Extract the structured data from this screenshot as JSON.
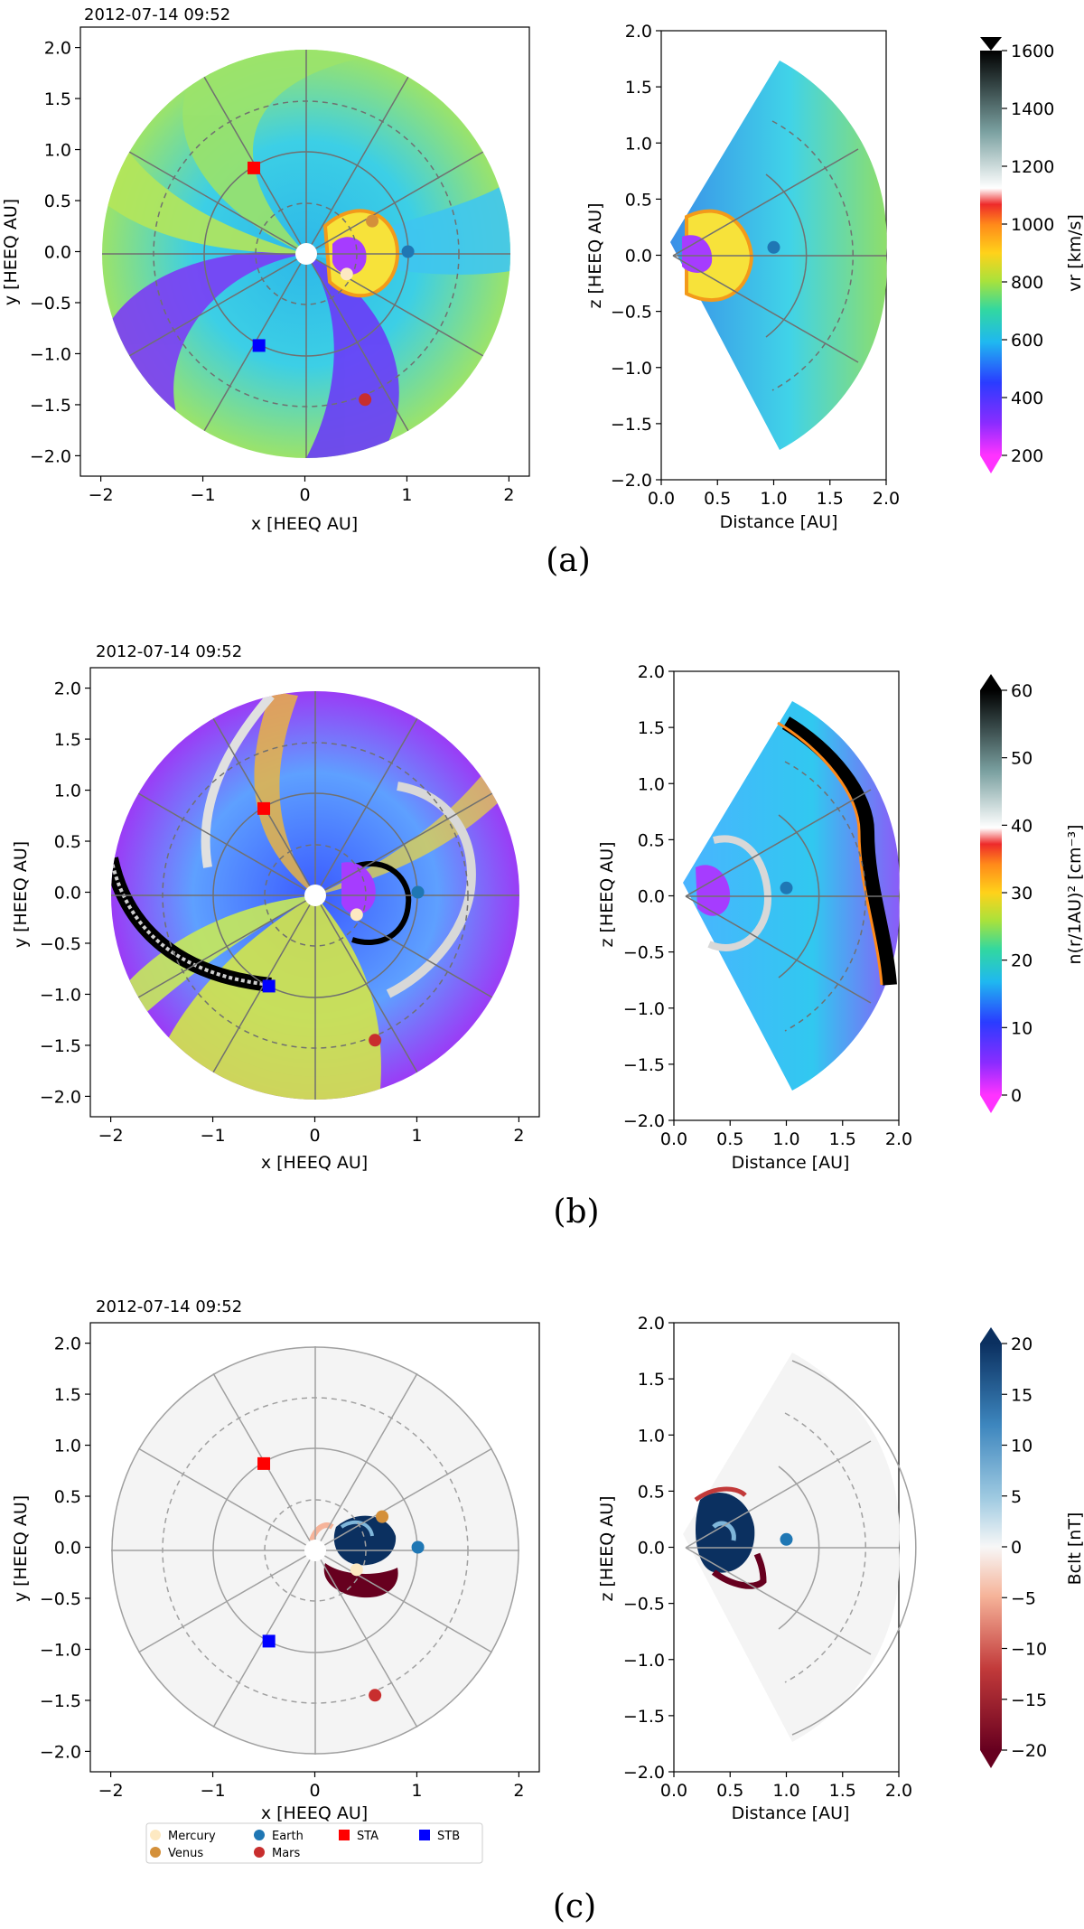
{
  "common": {
    "date": "2012-07-14 09:52",
    "x_label": "x [HEEQ AU]",
    "y_label": "y [HEEQ AU]",
    "z_label": "z [HEEQ AU]",
    "dist_label": "Distance [AU]",
    "xy_xticks": [
      -2,
      -1,
      0,
      1,
      2
    ],
    "xy_yticks": [
      2.0,
      1.5,
      1.0,
      0.5,
      0.0,
      -0.5,
      -1.0,
      -1.5,
      -2.0
    ],
    "xy_yticklabels": [
      "2.0",
      "1.5",
      "1.0",
      "0.5",
      "0.0",
      "−0.5",
      "−1.0",
      "−1.5",
      "−2.0"
    ],
    "xz_xticks": [
      0.0,
      0.5,
      1.0,
      1.5,
      2.0
    ],
    "xz_xticklabels": [
      "0.0",
      "0.5",
      "1.0",
      "1.5",
      "2.0"
    ],
    "xz_yticks": [
      2.0,
      1.5,
      1.0,
      0.5,
      0.0,
      -0.5,
      -1.0,
      -1.5,
      -2.0
    ],
    "xz_yticklabels": [
      "2.0",
      "1.5",
      "1.0",
      "0.5",
      "0.0",
      "−0.5",
      "−1.0",
      "−1.5",
      "−2.0"
    ]
  },
  "chart_data": [
    {
      "type": "heatmap",
      "panel": "(a)",
      "quantity_label": "vr  [km/s]",
      "colorbar_ticks": [
        "1600",
        "1400",
        "1200",
        "1000",
        "800",
        "600",
        "400",
        "200"
      ],
      "colorbar_range": [
        200,
        1600
      ],
      "xy_xlim": [
        -2.2,
        2.2
      ],
      "xy_ylim": [
        -2.2,
        2.2
      ],
      "xz_xlim": [
        0,
        2
      ],
      "xz_ylim": [
        -2,
        2
      ],
      "markers_xy": [
        {
          "name": "STA",
          "x": -0.5,
          "y": 0.82
        },
        {
          "name": "STB",
          "x": -0.45,
          "y": -0.92
        },
        {
          "name": "Venus",
          "x": 0.66,
          "y": 0.3
        },
        {
          "name": "Mercury",
          "x": 0.41,
          "y": -0.22
        },
        {
          "name": "Mars",
          "x": 0.59,
          "y": -1.45
        },
        {
          "name": "Earth",
          "x": 1.01,
          "y": 0.0
        }
      ],
      "markers_xz": [
        {
          "name": "Earth",
          "x": 1.0,
          "z": 0.07
        }
      ]
    },
    {
      "type": "heatmap",
      "panel": "(b)",
      "quantity_label": "n(r/1AU)²  [cm⁻³]",
      "colorbar_ticks": [
        "60",
        "50",
        "40",
        "30",
        "20",
        "10",
        "0"
      ],
      "colorbar_range": [
        0,
        60
      ],
      "xy_xlim": [
        -2.2,
        2.2
      ],
      "xy_ylim": [
        -2.2,
        2.2
      ],
      "xz_xlim": [
        0,
        2
      ],
      "xz_ylim": [
        -2,
        2
      ],
      "markers_xy": [
        {
          "name": "STA",
          "x": -0.5,
          "y": 0.82
        },
        {
          "name": "STB",
          "x": -0.45,
          "y": -0.92
        },
        {
          "name": "Mercury",
          "x": 0.41,
          "y": -0.22
        },
        {
          "name": "Mars",
          "x": 0.59,
          "y": -1.45
        },
        {
          "name": "Earth",
          "x": 1.01,
          "y": 0.0
        }
      ],
      "markers_xz": [
        {
          "name": "Earth",
          "x": 1.0,
          "z": 0.07
        }
      ]
    },
    {
      "type": "heatmap",
      "panel": "(c)",
      "quantity_label": "Bclt  [nT]",
      "colorbar_ticks": [
        "20",
        "15",
        "10",
        "5",
        "0",
        "−5",
        "−10",
        "−15",
        "−20"
      ],
      "colorbar_range": [
        -20,
        20
      ],
      "xy_xlim": [
        -2.2,
        2.2
      ],
      "xy_ylim": [
        -2.2,
        2.2
      ],
      "xz_xlim": [
        0,
        2
      ],
      "xz_ylim": [
        -2,
        2
      ],
      "markers_xy": [
        {
          "name": "STA",
          "x": -0.5,
          "y": 0.82
        },
        {
          "name": "STB",
          "x": -0.45,
          "y": -0.92
        },
        {
          "name": "Venus",
          "x": 0.66,
          "y": 0.3
        },
        {
          "name": "Mercury",
          "x": 0.41,
          "y": -0.22
        },
        {
          "name": "Mars",
          "x": 0.59,
          "y": -1.45
        },
        {
          "name": "Earth",
          "x": 1.01,
          "y": 0.0
        }
      ],
      "markers_xz": [
        {
          "name": "Earth",
          "x": 1.0,
          "z": 0.07
        }
      ]
    }
  ],
  "legend": {
    "items": [
      {
        "name": "Mercury",
        "label": "Mercury",
        "color": "#fde9c2",
        "shape": "circle"
      },
      {
        "name": "Venus",
        "label": "Venus",
        "color": "#d4903a",
        "shape": "circle"
      },
      {
        "name": "Earth",
        "label": "Earth",
        "color": "#1f77b4",
        "shape": "circle"
      },
      {
        "name": "Mars",
        "label": "Mars",
        "color": "#c82e2e",
        "shape": "circle"
      },
      {
        "name": "STA",
        "label": "STA",
        "color": "#ff0000",
        "shape": "square"
      },
      {
        "name": "STB",
        "label": "STB",
        "color": "#0000ff",
        "shape": "square"
      }
    ]
  },
  "captions": {
    "a": "(a)",
    "b": "(b)",
    "c": "(c)"
  }
}
